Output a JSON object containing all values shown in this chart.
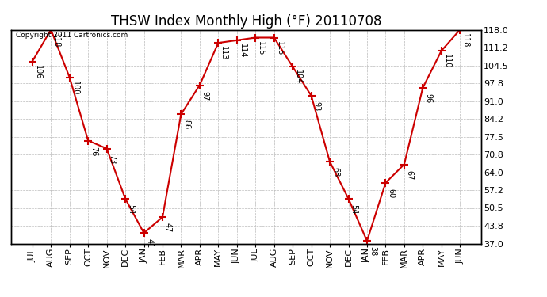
{
  "title": "THSW Index Monthly High (°F) 20110708",
  "copyright": "Copyright 2011 Cartronics.com",
  "months": [
    "JUL",
    "AUG",
    "SEP",
    "OCT",
    "NOV",
    "DEC",
    "JAN",
    "FEB",
    "MAR",
    "APR",
    "MAY",
    "JUN",
    "JUL",
    "AUG",
    "SEP",
    "OCT",
    "NOV",
    "DEC",
    "JAN",
    "FEB",
    "MAR",
    "APR",
    "MAY",
    "JUN"
  ],
  "values": [
    106,
    118,
    100,
    76,
    73,
    54,
    41,
    47,
    86,
    97,
    113,
    114,
    115,
    115,
    104,
    93,
    68,
    54,
    38,
    60,
    67,
    96,
    110,
    118
  ],
  "ylim": [
    37.0,
    118.0
  ],
  "yticks": [
    37.0,
    43.8,
    50.5,
    57.2,
    64.0,
    70.8,
    77.5,
    84.2,
    91.0,
    97.8,
    104.5,
    111.2,
    118.0
  ],
  "ytick_labels": [
    "37.0",
    "43.8",
    "50.5",
    "57.2",
    "64.0",
    "70.8",
    "77.5",
    "84.2",
    "91.0",
    "97.8",
    "104.5",
    "111.2",
    "118.0"
  ],
  "line_color": "#cc0000",
  "marker_color": "#cc0000",
  "bg_color": "#ffffff",
  "grid_color": "#bbbbbb",
  "title_fontsize": 12,
  "label_fontsize": 8,
  "annotation_fontsize": 7,
  "copyright_fontsize": 6.5
}
